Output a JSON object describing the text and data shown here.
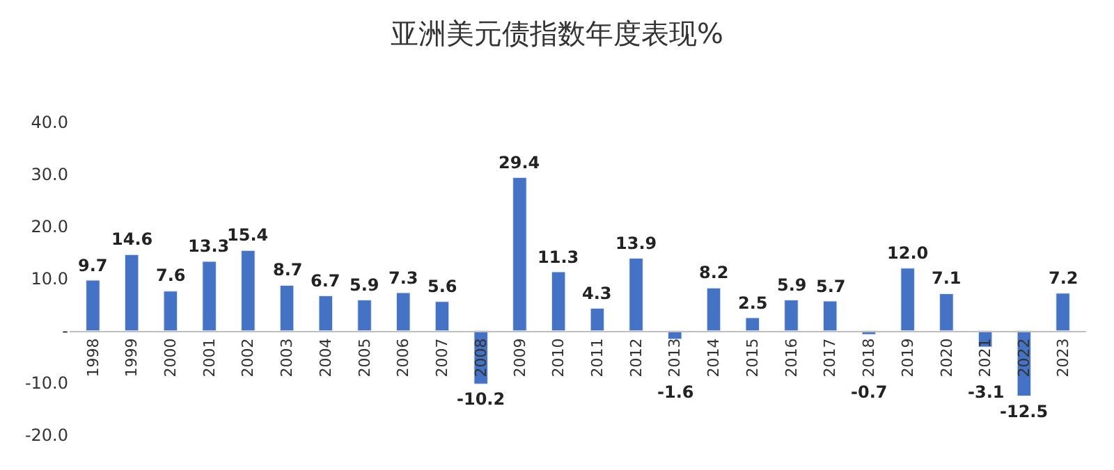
{
  "chart_data": {
    "type": "bar",
    "title": "亚洲美元债指数年度表现%",
    "categories": [
      "1998",
      "1999",
      "2000",
      "2001",
      "2002",
      "2003",
      "2004",
      "2005",
      "2006",
      "2007",
      "2008",
      "2009",
      "2010",
      "2011",
      "2012",
      "2013",
      "2014",
      "2015",
      "2016",
      "2017",
      "2018",
      "2019",
      "2020",
      "2021",
      "2022",
      "2023"
    ],
    "values": [
      9.7,
      14.6,
      7.6,
      13.3,
      15.4,
      8.7,
      6.7,
      5.9,
      7.3,
      5.6,
      -10.2,
      29.4,
      11.3,
      4.3,
      13.9,
      -1.6,
      8.2,
      2.5,
      5.9,
      5.7,
      -0.7,
      12.0,
      7.1,
      -3.1,
      -12.5,
      7.2
    ],
    "value_labels": [
      "9.7",
      "14.6",
      "7.6",
      "13.3",
      "15.4",
      "8.7",
      "6.7",
      "5.9",
      "7.3",
      "5.6",
      "-10.2",
      "29.4",
      "11.3",
      "4.3",
      "13.9",
      "-1.6",
      "8.2",
      "2.5",
      "5.9",
      "5.7",
      "-0.7",
      "12.0",
      "7.1",
      "-3.1",
      "-12.5",
      "7.2"
    ],
    "color": "#4472c4",
    "ylim": [
      -20,
      40
    ],
    "yticks": [
      {
        "value": -20,
        "label": "-20.0"
      },
      {
        "value": -10,
        "label": "-10.0"
      },
      {
        "value": 0,
        "label": "-"
      },
      {
        "value": 10,
        "label": "10.0"
      },
      {
        "value": 20,
        "label": "20.0"
      },
      {
        "value": 30,
        "label": "30.0"
      },
      {
        "value": 40,
        "label": "40.0"
      }
    ]
  }
}
